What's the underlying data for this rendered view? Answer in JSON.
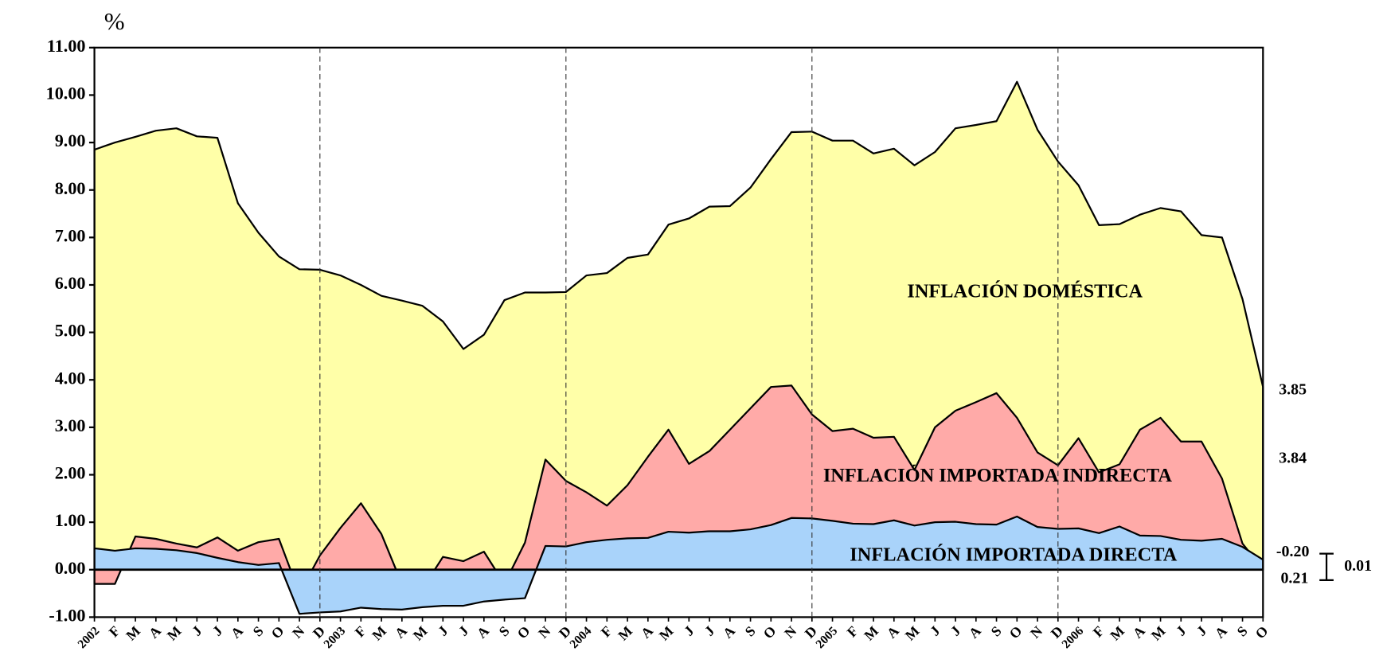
{
  "chart_data": {
    "type": "area",
    "y_unit": "%",
    "categories": [
      "2002",
      "F",
      "M",
      "A",
      "M",
      "J",
      "J",
      "A",
      "S",
      "O",
      "N",
      "D",
      "2003",
      "F",
      "M",
      "A",
      "M",
      "J",
      "J",
      "A",
      "S",
      "O",
      "N",
      "D",
      "2004",
      "F",
      "M",
      "A",
      "M",
      "J",
      "J",
      "A",
      "S",
      "O",
      "N",
      "D",
      "2005",
      "F",
      "M",
      "A",
      "M",
      "J",
      "J",
      "A",
      "S",
      "O",
      "N",
      "D",
      "2006",
      "F",
      "M",
      "A",
      "M",
      "J",
      "J",
      "A",
      "S",
      "O"
    ],
    "series": [
      {
        "name": "INFLACIÓN IMPORTADA DIRECTA",
        "color": "#a9d3fa",
        "values": [
          0.45,
          0.4,
          0.45,
          0.44,
          0.41,
          0.35,
          0.25,
          0.16,
          0.1,
          0.14,
          -0.93,
          -0.9,
          -0.88,
          -0.8,
          -0.83,
          -0.84,
          -0.79,
          -0.76,
          -0.76,
          -0.67,
          -0.63,
          -0.6,
          0.5,
          0.49,
          0.58,
          0.63,
          0.66,
          0.67,
          0.8,
          0.78,
          0.81,
          0.81,
          0.85,
          0.94,
          1.09,
          1.08,
          1.03,
          0.97,
          0.96,
          1.04,
          0.93,
          1.0,
          1.01,
          0.96,
          0.95,
          1.12,
          0.9,
          0.86,
          0.87,
          0.77,
          0.91,
          0.72,
          0.71,
          0.63,
          0.61,
          0.65,
          0.48,
          0.21
        ]
      },
      {
        "name": "INFLACIÓN IMPORTADA INDIRECTA",
        "color": "#ffaaa8",
        "values": [
          -0.75,
          -0.7,
          0.25,
          0.21,
          0.14,
          0.12,
          0.43,
          0.24,
          0.48,
          0.51,
          0.43,
          1.2,
          1.76,
          2.2,
          1.58,
          0.54,
          0.39,
          1.03,
          0.94,
          1.05,
          0.33,
          1.17,
          1.82,
          1.38,
          1.05,
          0.72,
          1.12,
          1.71,
          2.15,
          1.45,
          1.69,
          2.14,
          2.55,
          2.91,
          2.79,
          2.19,
          1.89,
          2.0,
          1.82,
          1.76,
          1.17,
          2.0,
          2.34,
          2.57,
          2.77,
          2.08,
          1.57,
          1.34,
          1.9,
          1.28,
          1.31,
          2.23,
          2.49,
          2.07,
          2.09,
          1.27,
          0.07,
          -0.2
        ]
      },
      {
        "name": "INFLACIÓN DOMÉSTICA",
        "color": "#ffffa8",
        "values": [
          9.15,
          9.3,
          8.42,
          8.6,
          8.75,
          8.66,
          8.42,
          7.32,
          6.52,
          5.95,
          6.83,
          6.02,
          5.32,
          4.6,
          5.02,
          5.97,
          5.96,
          4.96,
          4.47,
          4.57,
          5.98,
          5.27,
          3.52,
          3.98,
          4.57,
          4.9,
          4.79,
          4.26,
          4.32,
          5.17,
          5.15,
          4.71,
          4.65,
          4.8,
          5.34,
          5.96,
          6.12,
          6.07,
          5.99,
          6.07,
          6.42,
          5.8,
          5.95,
          5.84,
          5.73,
          7.08,
          6.8,
          6.4,
          5.33,
          5.21,
          5.06,
          4.53,
          4.42,
          4.85,
          4.35,
          5.08,
          5.15,
          3.84
        ]
      }
    ],
    "ylim": [
      -1,
      11
    ],
    "yticks": [
      {
        "value": -1,
        "label": "-1.00"
      },
      {
        "value": 0,
        "label": "0.00"
      },
      {
        "value": 1,
        "label": "1.00"
      },
      {
        "value": 2,
        "label": "2.00"
      },
      {
        "value": 3,
        "label": "3.00"
      },
      {
        "value": 4,
        "label": "4.00"
      },
      {
        "value": 5,
        "label": "5.00"
      },
      {
        "value": 6,
        "label": "6.00"
      },
      {
        "value": 7,
        "label": "7.00"
      },
      {
        "value": 8,
        "label": "8.00"
      },
      {
        "value": 9,
        "label": "9.00"
      },
      {
        "value": 10,
        "label": "10.00"
      },
      {
        "value": 11,
        "label": "11.00"
      }
    ],
    "end_labels": [
      "3.85",
      "3.84",
      "-0.20",
      "0.21",
      "0.01"
    ],
    "grid": false
  }
}
